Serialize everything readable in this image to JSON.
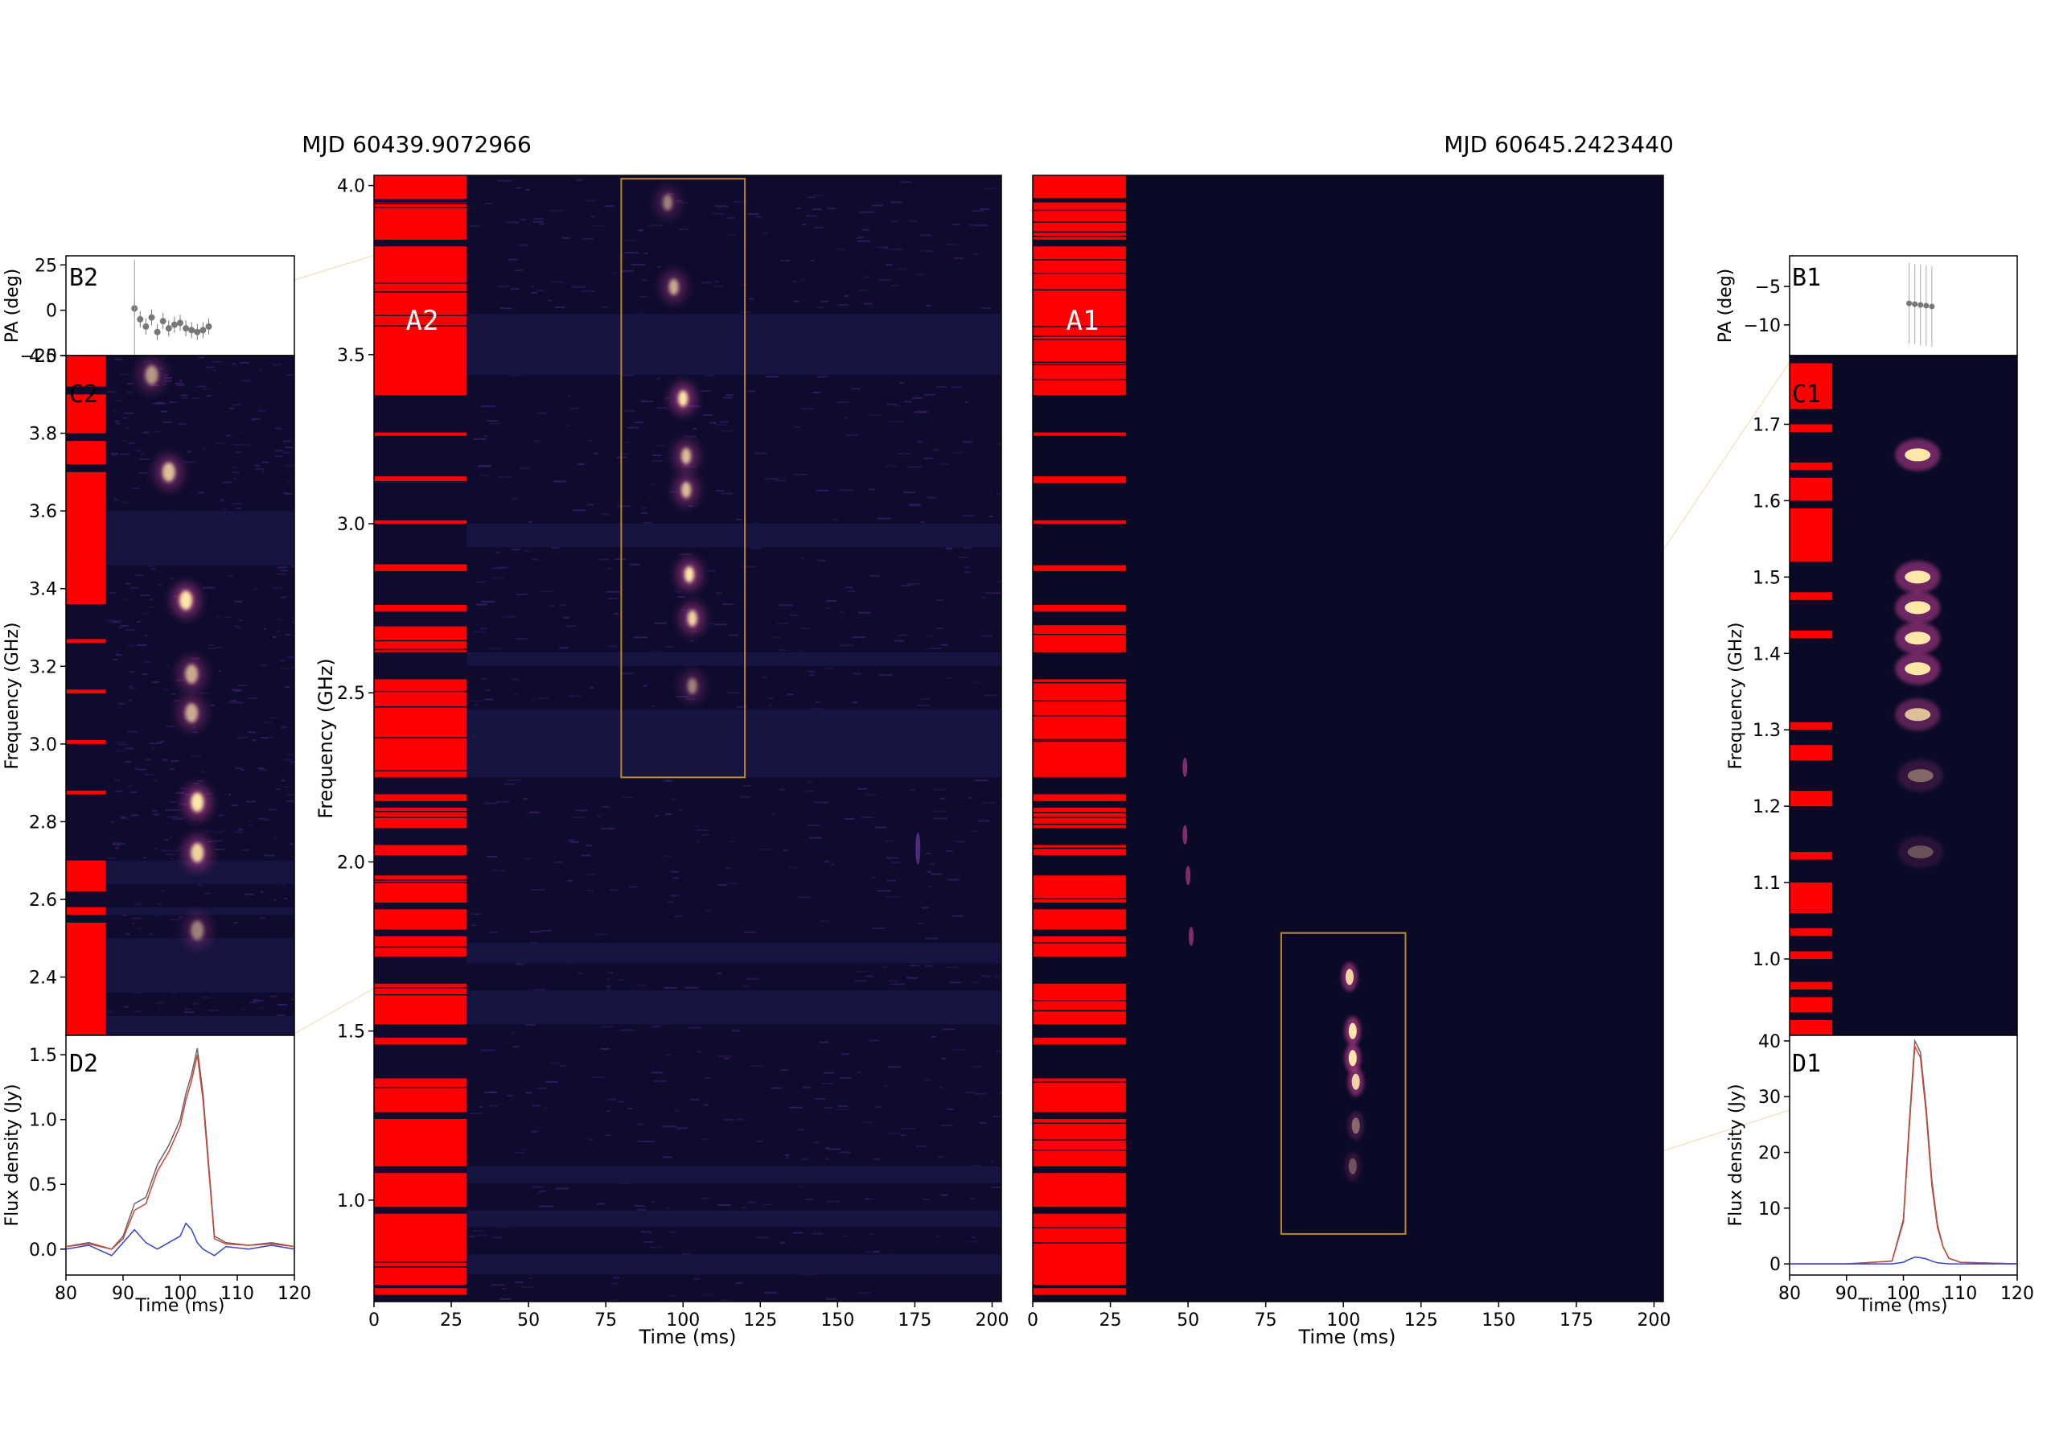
{
  "titles": {
    "left": "MJD 60439.9072966",
    "right": "MJD 60645.2423440"
  },
  "colors": {
    "bg": "#ffffff",
    "dynspec_bg": "#0e0b2e",
    "flag": "#ff0000",
    "box": "#b8862b",
    "stokes_I": "#666666",
    "stokes_L": "#cc4433",
    "stokes_V": "#3344cc",
    "pa": "#777777"
  },
  "chart_data": [
    {
      "id": "B2",
      "type": "scatter",
      "panel_label": "B2",
      "ylabel": "PA (deg)",
      "ylim": [
        -25,
        30
      ],
      "xlim": [
        80,
        120
      ],
      "yticks": [
        "25",
        "0",
        "−25"
      ],
      "x": [
        92,
        93,
        94,
        95,
        96,
        97,
        98,
        99,
        100,
        101,
        102,
        103,
        104,
        105
      ],
      "y": [
        1,
        -5,
        -9,
        -4,
        -12,
        -6,
        -10,
        -8,
        -7,
        -10,
        -11,
        -12,
        -11,
        -9
      ]
    },
    {
      "id": "C2",
      "type": "heatmap",
      "panel_label": "C2",
      "ylabel": "Frequency (GHz)",
      "xlim": [
        80,
        120
      ],
      "ylim": [
        2.25,
        4.0
      ],
      "yticks": [
        "4.0",
        "3.8",
        "3.6",
        "3.4",
        "3.2",
        "3.0",
        "2.8",
        "2.6",
        "2.4"
      ]
    },
    {
      "id": "D2",
      "type": "line",
      "panel_label": "D2",
      "xlabel": "Time (ms)",
      "ylabel": "Flux density (Jy)",
      "xlim": [
        80,
        120
      ],
      "ylim": [
        -0.2,
        1.65
      ],
      "xticks": [
        "80",
        "90",
        "100",
        "110",
        "120"
      ],
      "yticks": [
        "1.5",
        "1.0",
        "0.5",
        "0.0"
      ],
      "x": [
        80,
        84,
        88,
        90,
        92,
        94,
        96,
        98,
        100,
        101,
        102,
        103,
        104,
        106,
        108,
        112,
        116,
        120
      ],
      "series": [
        {
          "values": [
            0.02,
            0.05,
            0.0,
            0.1,
            0.35,
            0.4,
            0.65,
            0.8,
            1.0,
            1.2,
            1.35,
            1.55,
            1.2,
            0.1,
            0.05,
            0.03,
            0.05,
            0.02
          ]
        },
        {
          "values": [
            0.02,
            0.04,
            0.0,
            0.08,
            0.3,
            0.35,
            0.6,
            0.75,
            0.95,
            1.15,
            1.3,
            1.5,
            1.15,
            0.08,
            0.04,
            0.03,
            0.04,
            0.02
          ]
        },
        {
          "values": [
            0.0,
            0.03,
            -0.05,
            0.05,
            0.15,
            0.05,
            0.0,
            0.05,
            0.1,
            0.2,
            0.15,
            0.05,
            0.0,
            -0.05,
            0.02,
            0.0,
            0.03,
            0.0
          ]
        }
      ]
    },
    {
      "id": "A2",
      "type": "heatmap",
      "panel_label": "A2",
      "xlabel": "Time (ms)",
      "ylabel": "Frequency (GHz)",
      "xlim": [
        0,
        203
      ],
      "ylim": [
        0.7,
        4.03
      ],
      "xticks": [
        "0",
        "25",
        "50",
        "75",
        "100",
        "125",
        "150",
        "175",
        "200"
      ],
      "yticks": [
        "4.0",
        "3.5",
        "3.0",
        "2.5",
        "2.0",
        "1.5",
        "1.0"
      ],
      "zoom_box": {
        "t0": 80,
        "t1": 120,
        "f0": 2.25,
        "f1": 4.02
      }
    },
    {
      "id": "A1",
      "type": "heatmap",
      "panel_label": "A1",
      "xlabel": "Time (ms)",
      "xlim": [
        0,
        203
      ],
      "ylim": [
        0.7,
        4.03
      ],
      "xticks": [
        "0",
        "25",
        "50",
        "75",
        "100",
        "125",
        "150",
        "175",
        "200"
      ],
      "zoom_box": {
        "t0": 80,
        "t1": 120,
        "f0": 0.9,
        "f1": 1.79
      }
    },
    {
      "id": "B1",
      "type": "scatter",
      "panel_label": "B1",
      "ylabel": "PA (deg)",
      "ylim": [
        -14,
        -1
      ],
      "xlim": [
        80,
        120
      ],
      "yticks": [
        "−5",
        "−10"
      ],
      "x": [
        101,
        102,
        103,
        104,
        105
      ],
      "y": [
        -7.2,
        -7.3,
        -7.4,
        -7.5,
        -7.6
      ]
    },
    {
      "id": "C1",
      "type": "heatmap",
      "panel_label": "C1",
      "ylabel": "Frequency (GHz)",
      "xlim": [
        80,
        120
      ],
      "ylim": [
        0.9,
        1.79
      ],
      "yticks": [
        "1.7",
        "1.6",
        "1.5",
        "1.4",
        "1.3",
        "1.2",
        "1.1",
        "1.0"
      ]
    },
    {
      "id": "D1",
      "type": "line",
      "panel_label": "D1",
      "xlabel": "Time (ms)",
      "ylabel": "Flux density (Jy)",
      "xlim": [
        80,
        120
      ],
      "ylim": [
        -2,
        41
      ],
      "xticks": [
        "80",
        "90",
        "100",
        "110",
        "120"
      ],
      "yticks": [
        "40",
        "30",
        "20",
        "10",
        "0"
      ],
      "x": [
        80,
        90,
        98,
        100,
        101,
        102,
        103,
        104,
        105,
        106,
        107,
        108,
        110,
        120
      ],
      "series": [
        {
          "values": [
            0,
            0,
            0.5,
            8,
            25,
            40,
            38,
            28,
            15,
            7,
            3,
            1,
            0.3,
            0
          ]
        },
        {
          "values": [
            0,
            0,
            0.5,
            7.5,
            24,
            39,
            37,
            27,
            14,
            6.5,
            3,
            1,
            0.3,
            0
          ]
        },
        {
          "values": [
            0,
            0,
            0,
            0.3,
            0.8,
            1.2,
            1.1,
            0.9,
            0.5,
            0.2,
            0.1,
            0,
            0,
            0
          ]
        }
      ]
    }
  ]
}
